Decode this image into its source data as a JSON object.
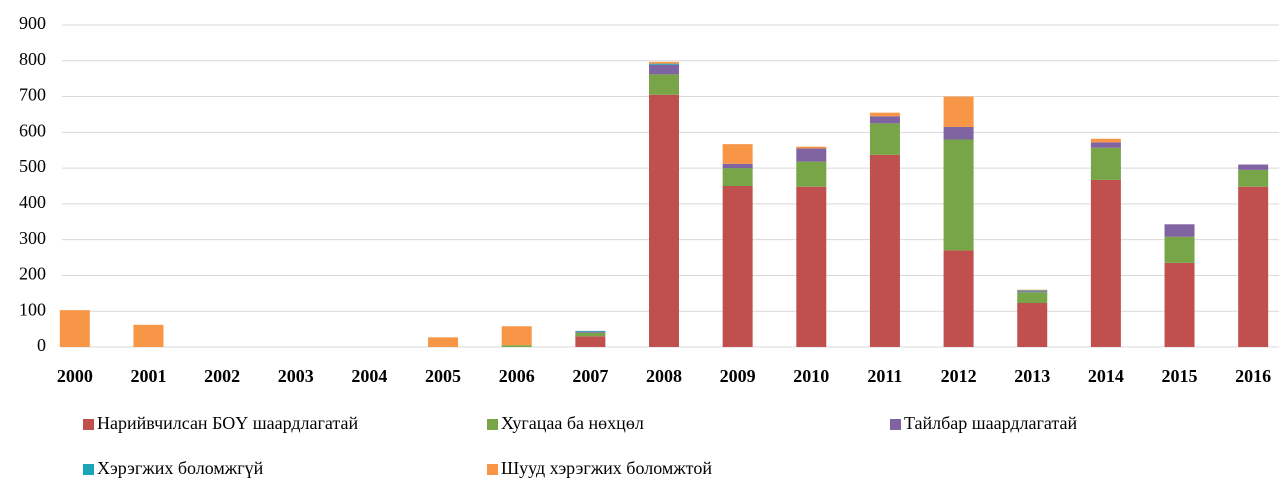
{
  "chart_data": {
    "type": "bar",
    "stacked": true,
    "categories": [
      "2000",
      "2001",
      "2002",
      "2003",
      "2004",
      "2005",
      "2006",
      "2007",
      "2008",
      "2009",
      "2010",
      "2011",
      "2012",
      "2013",
      "2014",
      "2015",
      "2016"
    ],
    "series": [
      {
        "name": "Нарийвчилсан БОҮ шаардлагатай",
        "color": "#c0504d",
        "values": [
          0,
          0,
          0,
          0,
          0,
          0,
          0,
          30,
          705,
          450,
          448,
          537,
          270,
          123,
          467,
          235,
          448
        ]
      },
      {
        "name": "Хугацаа ба нөхцөл",
        "color": "#77a548",
        "values": [
          0,
          0,
          0,
          0,
          0,
          0,
          5,
          10,
          57,
          50,
          70,
          88,
          310,
          30,
          90,
          73,
          47
        ]
      },
      {
        "name": "Тайлбар шаардлагатай",
        "color": "#8064a2",
        "values": [
          0,
          0,
          0,
          0,
          0,
          0,
          0,
          3,
          27,
          12,
          37,
          20,
          35,
          3,
          15,
          35,
          15
        ]
      },
      {
        "name": "Хэрэгжих боломжгүй",
        "color": "#1aa6b7",
        "values": [
          0,
          0,
          0,
          0,
          0,
          0,
          0,
          2,
          3,
          0,
          0,
          0,
          0,
          2,
          0,
          0,
          0
        ]
      },
      {
        "name": "Шууд хэрэгжих боломжтой",
        "color": "#f79646",
        "values": [
          103,
          62,
          0,
          0,
          0,
          27,
          53,
          0,
          5,
          55,
          5,
          10,
          85,
          2,
          10,
          0,
          0
        ]
      }
    ],
    "ylim": [
      0,
      900
    ],
    "yticks": [
      0,
      100,
      200,
      300,
      400,
      500,
      600,
      700,
      800,
      900
    ],
    "grid": true
  }
}
